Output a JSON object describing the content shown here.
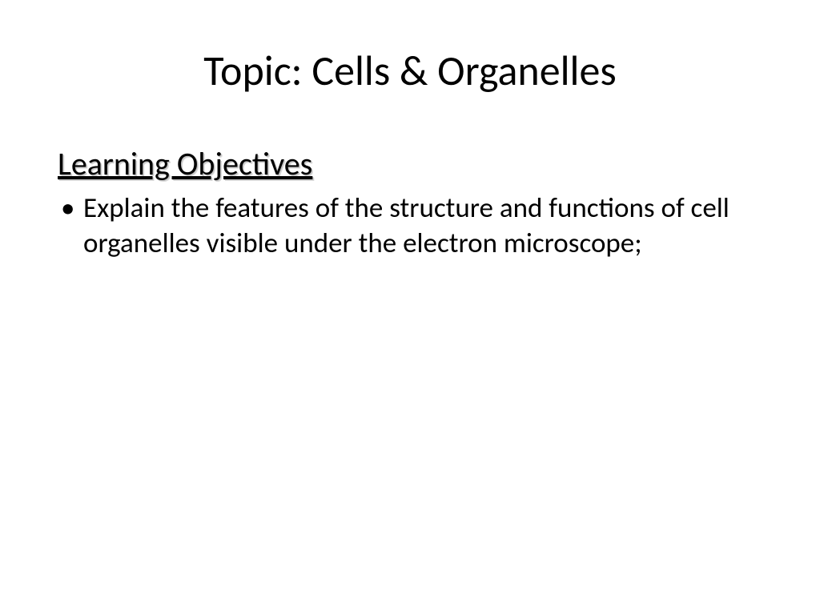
{
  "slide": {
    "title": "Topic: Cells & Organelles",
    "subheading": "Learning Objectives",
    "bullets": [
      "Explain the features of the structure  and functions of cell organelles visible under the electron microscope;"
    ]
  },
  "styles": {
    "background_color": "#ffffff",
    "title_fontsize": 52,
    "title_color": "#000000",
    "subheading_fontsize": 40,
    "subheading_color": "#000000",
    "subheading_shadow": "#bfbfbf",
    "bullet_fontsize": 35,
    "bullet_color": "#000000",
    "font_family": "Calibri"
  }
}
